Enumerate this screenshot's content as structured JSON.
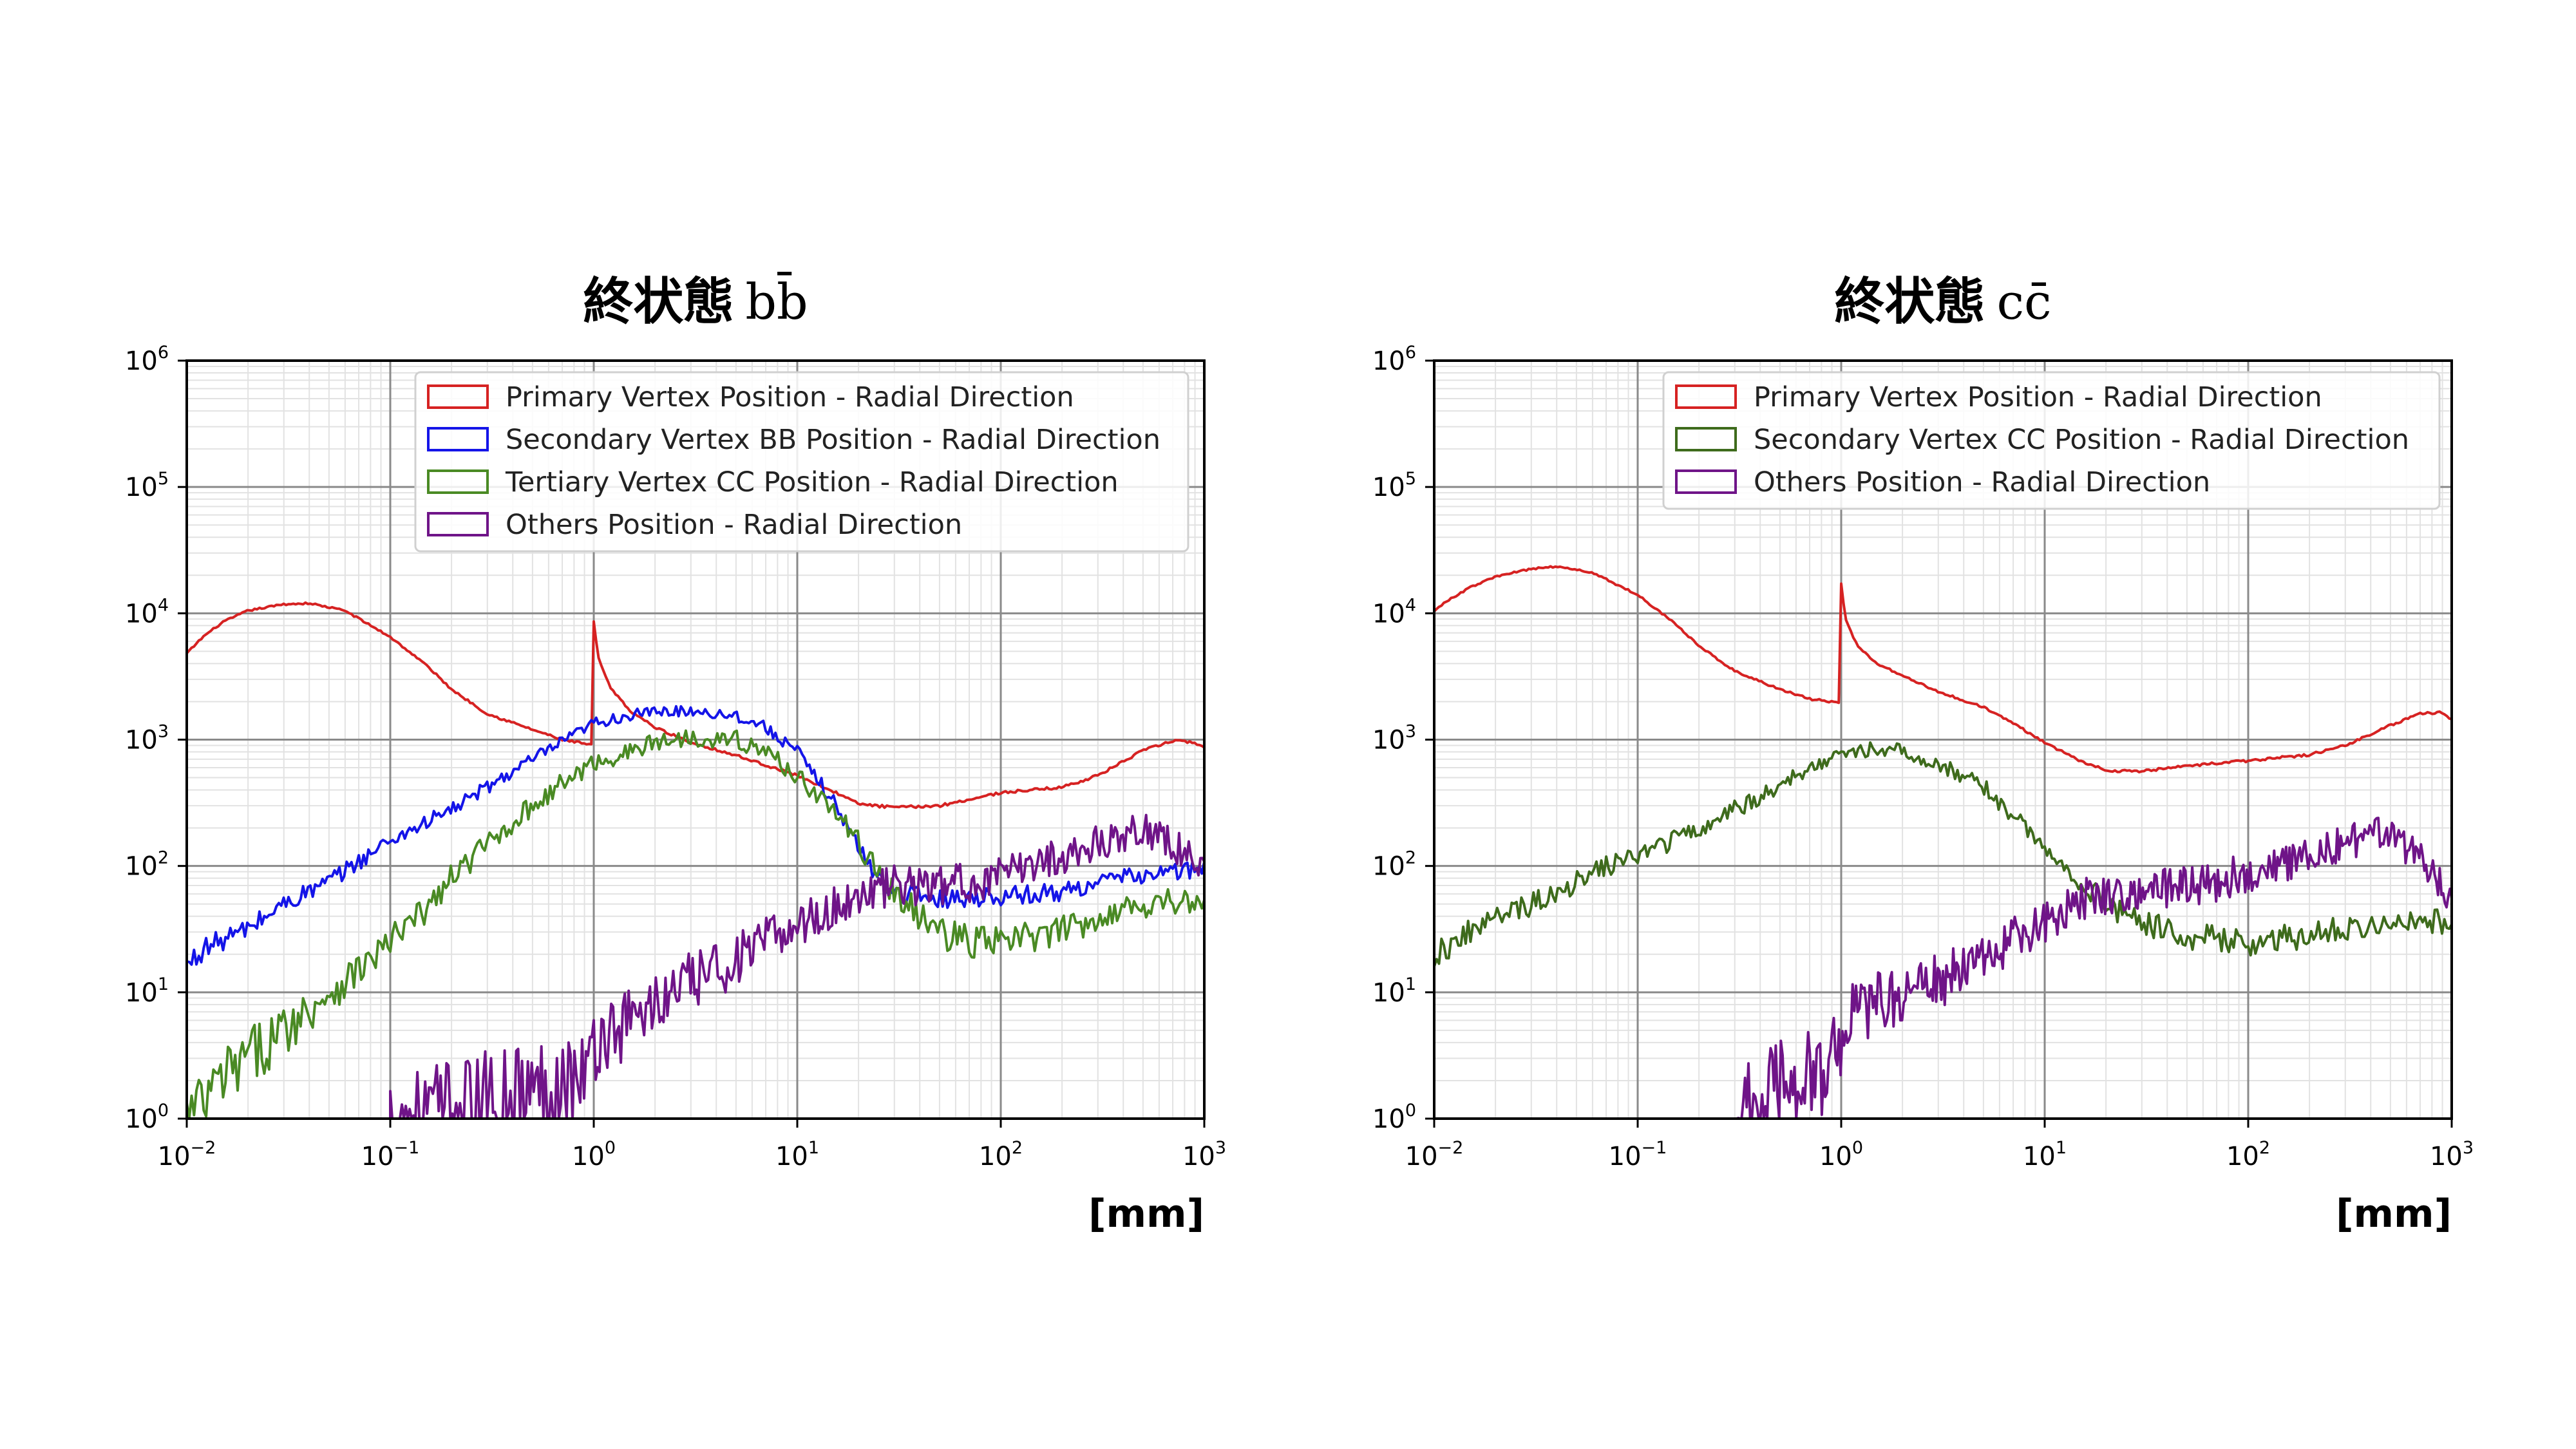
{
  "chart_data": [
    {
      "type": "line",
      "title_main": "終状態",
      "title_pair": "bb̄",
      "unit_label": "[mm]",
      "x_scale": "log",
      "y_scale": "log",
      "xlim": [
        0.01,
        1000
      ],
      "ylim": [
        1,
        1000000
      ],
      "grid": true,
      "legend_position": "top-right",
      "x_ticks": [
        {
          "base": "10",
          "exp": "−2",
          "value": 0.01
        },
        {
          "base": "10",
          "exp": "−1",
          "value": 0.1
        },
        {
          "base": "10",
          "exp": "0",
          "value": 1
        },
        {
          "base": "10",
          "exp": "1",
          "value": 10
        },
        {
          "base": "10",
          "exp": "2",
          "value": 100
        },
        {
          "base": "10",
          "exp": "3",
          "value": 1000
        }
      ],
      "y_ticks": [
        {
          "base": "10",
          "exp": "0",
          "value": 1
        },
        {
          "base": "10",
          "exp": "1",
          "value": 10
        },
        {
          "base": "10",
          "exp": "2",
          "value": 100
        },
        {
          "base": "10",
          "exp": "3",
          "value": 1000
        },
        {
          "base": "10",
          "exp": "4",
          "value": 10000
        },
        {
          "base": "10",
          "exp": "5",
          "value": 100000
        },
        {
          "base": "10",
          "exp": "6",
          "value": 1000000
        }
      ],
      "series": [
        {
          "name": "Primary Vertex Position - Radial Direction",
          "color": "#d62222",
          "noise": 0.015,
          "x": [
            0.01,
            0.012,
            0.015,
            0.02,
            0.03,
            0.04,
            0.06,
            0.1,
            0.15,
            0.2,
            0.3,
            0.5,
            0.7,
            0.999,
            1.0,
            1.05,
            1.2,
            1.5,
            2,
            3,
            5,
            10,
            15,
            20,
            30,
            50,
            100,
            200,
            300,
            500,
            700,
            900,
            1000
          ],
          "y": [
            4800,
            6500,
            8500,
            10500,
            11800,
            12000,
            10500,
            6500,
            3900,
            2500,
            1600,
            1200,
            1000,
            900,
            8500,
            4500,
            2600,
            1700,
            1250,
            950,
            750,
            520,
            390,
            310,
            290,
            300,
            380,
            420,
            520,
            820,
            980,
            950,
            850
          ]
        },
        {
          "name": "Secondary Vertex BB Position - Radial Direction",
          "color": "#1414e8",
          "noise": 0.08,
          "x": [
            0.01,
            0.012,
            0.02,
            0.03,
            0.05,
            0.1,
            0.2,
            0.3,
            0.5,
            0.7,
            1.0,
            1.5,
            2,
            3,
            5,
            7,
            10,
            15,
            20,
            25,
            30,
            50,
            100,
            200,
            300,
            500,
            700,
            1000
          ],
          "y": [
            16,
            22,
            32,
            50,
            75,
            160,
            280,
            420,
            700,
            950,
            1350,
            1550,
            1650,
            1700,
            1550,
            1250,
            800,
            330,
            140,
            80,
            62,
            55,
            58,
            62,
            75,
            85,
            90,
            95
          ]
        },
        {
          "name": "Tertiary Vertex CC Position - Radial Direction",
          "color": "#4a8a24",
          "noise": 0.12,
          "x": [
            0.01,
            0.012,
            0.015,
            0.02,
            0.03,
            0.05,
            0.07,
            0.1,
            0.15,
            0.2,
            0.3,
            0.5,
            0.7,
            1.0,
            1.5,
            2,
            3,
            5,
            7,
            10,
            15,
            20,
            30,
            50,
            70,
            100,
            200,
            300,
            500,
            700,
            1000
          ],
          "y": [
            1,
            1.3,
            2,
            3,
            5,
            10,
            15,
            25,
            45,
            80,
            150,
            300,
            450,
            650,
            800,
            950,
            1050,
            1000,
            800,
            520,
            280,
            150,
            60,
            30,
            25,
            25,
            30,
            40,
            50,
            55,
            45
          ]
        },
        {
          "name": "Others Position - Radial Direction",
          "color": "#6f1488",
          "noise": 0.18,
          "x": [
            0.1,
            0.15,
            0.2,
            0.3,
            0.5,
            0.7,
            0.99,
            1.0,
            1.5,
            2,
            3,
            5,
            7,
            10,
            15,
            20,
            30,
            50,
            100,
            150,
            200,
            300,
            400,
            500,
            700,
            1000
          ],
          "y": [
            1,
            1.1,
            1.2,
            1.4,
            1.7,
            2,
            2.4,
            4,
            6,
            8,
            12,
            18,
            25,
            35,
            45,
            60,
            70,
            70,
            80,
            110,
            120,
            150,
            180,
            200,
            150,
            90
          ]
        }
      ]
    },
    {
      "type": "line",
      "title_main": "終状態",
      "title_pair": "cc̄",
      "unit_label": "[mm]",
      "x_scale": "log",
      "y_scale": "log",
      "xlim": [
        0.01,
        1000
      ],
      "ylim": [
        1,
        1000000
      ],
      "grid": true,
      "legend_position": "top-right",
      "x_ticks": [
        {
          "base": "10",
          "exp": "−2",
          "value": 0.01
        },
        {
          "base": "10",
          "exp": "−1",
          "value": 0.1
        },
        {
          "base": "10",
          "exp": "0",
          "value": 1
        },
        {
          "base": "10",
          "exp": "1",
          "value": 10
        },
        {
          "base": "10",
          "exp": "2",
          "value": 100
        },
        {
          "base": "10",
          "exp": "3",
          "value": 1000
        }
      ],
      "y_ticks": [
        {
          "base": "10",
          "exp": "0",
          "value": 1
        },
        {
          "base": "10",
          "exp": "1",
          "value": 10
        },
        {
          "base": "10",
          "exp": "2",
          "value": 100
        },
        {
          "base": "10",
          "exp": "3",
          "value": 1000
        },
        {
          "base": "10",
          "exp": "4",
          "value": 10000
        },
        {
          "base": "10",
          "exp": "5",
          "value": 100000
        },
        {
          "base": "10",
          "exp": "6",
          "value": 1000000
        }
      ],
      "series": [
        {
          "name": "Primary Vertex Position - Radial Direction",
          "color": "#d62222",
          "noise": 0.015,
          "x": [
            0.01,
            0.012,
            0.015,
            0.02,
            0.03,
            0.04,
            0.06,
            0.1,
            0.15,
            0.2,
            0.3,
            0.5,
            0.7,
            0.999,
            1.0,
            1.05,
            1.2,
            1.5,
            2,
            3,
            5,
            7,
            10,
            15,
            20,
            30,
            50,
            100,
            200,
            300,
            500,
            700,
            900,
            1000
          ],
          "y": [
            10500,
            13000,
            16000,
            19500,
            22500,
            23500,
            21000,
            14000,
            8500,
            5500,
            3500,
            2500,
            2100,
            1950,
            17000,
            9000,
            5500,
            4000,
            3200,
            2400,
            1800,
            1350,
            950,
            680,
            570,
            560,
            620,
            680,
            760,
            900,
            1300,
            1600,
            1650,
            1450
          ]
        },
        {
          "name": "Secondary Vertex CC Position - Radial Direction",
          "color": "#3e6b1c",
          "noise": 0.1,
          "x": [
            0.01,
            0.012,
            0.015,
            0.02,
            0.03,
            0.05,
            0.07,
            0.1,
            0.15,
            0.2,
            0.3,
            0.5,
            0.7,
            1.0,
            1.5,
            2,
            3,
            5,
            7,
            10,
            15,
            20,
            30,
            50,
            100,
            200,
            300,
            500,
            700,
            1000
          ],
          "y": [
            20,
            24,
            30,
            38,
            50,
            75,
            100,
            120,
            160,
            200,
            280,
            420,
            600,
            800,
            850,
            800,
            650,
            420,
            250,
            140,
            75,
            50,
            35,
            28,
            25,
            28,
            32,
            38,
            38,
            35
          ]
        },
        {
          "name": "Others Position - Radial Direction",
          "color": "#6f1488",
          "noise": 0.18,
          "x": [
            0.3,
            0.4,
            0.5,
            0.7,
            0.99,
            1.0,
            1.5,
            2,
            3,
            5,
            7,
            10,
            15,
            20,
            30,
            50,
            70,
            100,
            150,
            200,
            300,
            400,
            500,
            700,
            1000
          ],
          "y": [
            1,
            1.3,
            1.7,
            2.3,
            3,
            6,
            8,
            10,
            12,
            18,
            25,
            35,
            55,
            60,
            65,
            70,
            75,
            90,
            100,
            120,
            150,
            180,
            170,
            120,
            60
          ]
        }
      ]
    }
  ]
}
